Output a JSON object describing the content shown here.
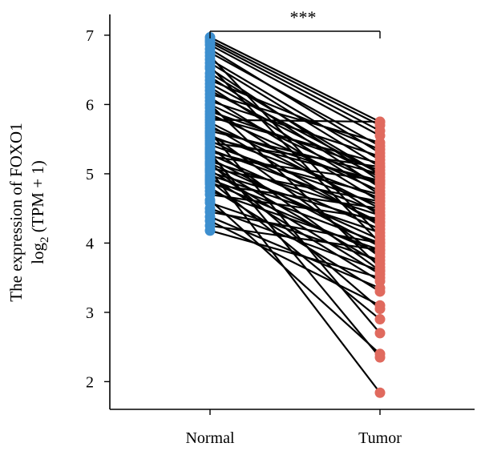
{
  "chart_data": {
    "type": "line",
    "title": "",
    "ylabel_line1": "The expression of FOXO1",
    "ylabel_line2_main": "log",
    "ylabel_line2_sub": "2",
    "ylabel_line2_rest": " (TPM + 1)",
    "ylim": [
      1.6,
      7.3
    ],
    "yticks": [
      "2",
      "3",
      "4",
      "5",
      "6",
      "7"
    ],
    "categories": [
      "Normal",
      "Tumor"
    ],
    "significance": "***",
    "colors": {
      "Normal": "#3d8fcf",
      "Tumor": "#e06a5e",
      "line": "#000000"
    },
    "pairs": [
      [
        6.97,
        5.75
      ],
      [
        6.93,
        5.7
      ],
      [
        6.9,
        5.62
      ],
      [
        6.86,
        5.55
      ],
      [
        6.8,
        5.3
      ],
      [
        6.75,
        5.4
      ],
      [
        6.7,
        4.1
      ],
      [
        6.65,
        5.2
      ],
      [
        6.6,
        5.1
      ],
      [
        6.52,
        4.9
      ],
      [
        6.45,
        5.0
      ],
      [
        6.4,
        4.8
      ],
      [
        6.35,
        5.35
      ],
      [
        6.3,
        5.0
      ],
      [
        6.25,
        4.7
      ],
      [
        6.2,
        4.95
      ],
      [
        6.15,
        5.45
      ],
      [
        6.1,
        4.6
      ],
      [
        6.05,
        5.25
      ],
      [
        6.0,
        4.85
      ],
      [
        5.95,
        4.4
      ],
      [
        5.9,
        5.05
      ],
      [
        5.86,
        4.75
      ],
      [
        5.82,
        5.15
      ],
      [
        5.78,
        5.75
      ],
      [
        5.74,
        4.5
      ],
      [
        5.7,
        4.25
      ],
      [
        5.66,
        4.85
      ],
      [
        5.62,
        5.0
      ],
      [
        5.58,
        3.8
      ],
      [
        5.55,
        4.65
      ],
      [
        5.52,
        4.9
      ],
      [
        5.48,
        4.3
      ],
      [
        5.45,
        5.1
      ],
      [
        5.42,
        4.55
      ],
      [
        5.38,
        3.6
      ],
      [
        5.35,
        4.45
      ],
      [
        5.32,
        4.7
      ],
      [
        5.28,
        4.2
      ],
      [
        5.25,
        4.9
      ],
      [
        5.22,
        3.95
      ],
      [
        5.18,
        4.4
      ],
      [
        5.15,
        4.05
      ],
      [
        5.12,
        3.7
      ],
      [
        5.08,
        4.6
      ],
      [
        5.05,
        3.55
      ],
      [
        5.02,
        4.3
      ],
      [
        4.98,
        4.15
      ],
      [
        4.95,
        3.45
      ],
      [
        4.92,
        4.0
      ],
      [
        4.88,
        3.85
      ],
      [
        4.85,
        4.5
      ],
      [
        4.8,
        3.3
      ],
      [
        4.75,
        3.9
      ],
      [
        4.7,
        4.35
      ],
      [
        4.62,
        2.4
      ],
      [
        4.58,
        3.75
      ],
      [
        4.5,
        3.6
      ],
      [
        4.45,
        4.0
      ],
      [
        4.38,
        3.35
      ],
      [
        4.32,
        3.1
      ],
      [
        4.25,
        3.9
      ],
      [
        4.18,
        3.5
      ],
      [
        5.6,
        2.7
      ],
      [
        5.3,
        2.35
      ],
      [
        5.15,
        3.05
      ],
      [
        4.9,
        2.9
      ],
      [
        5.05,
        1.84
      ],
      [
        6.55,
        4.0
      ],
      [
        6.0,
        3.65
      ]
    ]
  }
}
